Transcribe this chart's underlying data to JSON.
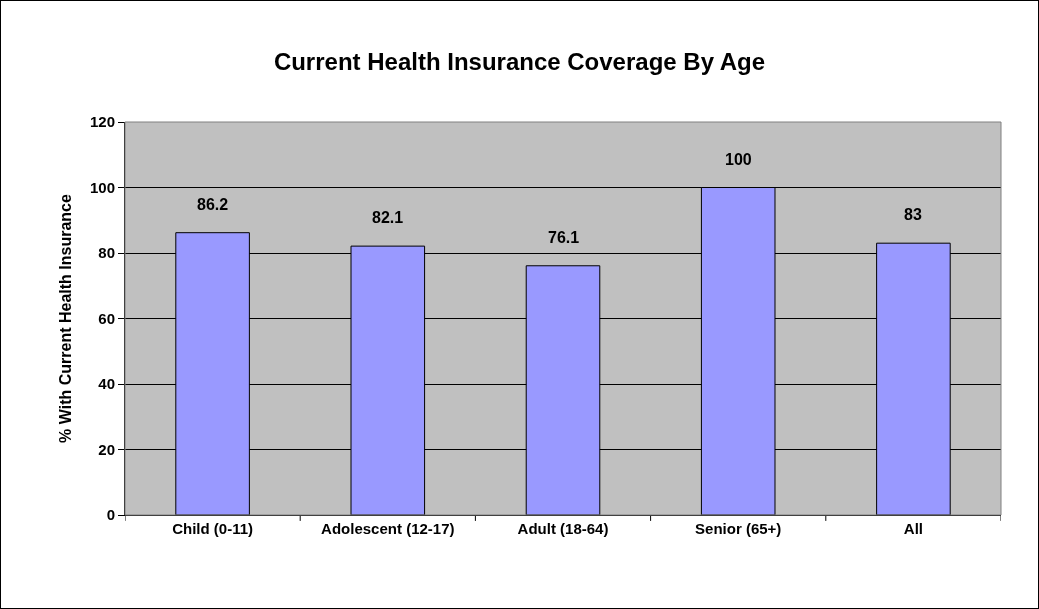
{
  "chart_data": {
    "type": "bar",
    "title": "Current Health Insurance Coverage By Age",
    "ylabel": "% With Current Health Insurance",
    "categories": [
      "Child (0-11)",
      "Adolescent (12-17)",
      "Adult (18-64)",
      "Senior (65+)",
      "All"
    ],
    "values": [
      86.2,
      82.1,
      76.1,
      100,
      83
    ],
    "color": "#9999ff",
    "ylim": [
      0,
      120
    ],
    "yticks": [
      0,
      20,
      40,
      60,
      80,
      100,
      120
    ],
    "grid": "y",
    "data_labels": true
  }
}
